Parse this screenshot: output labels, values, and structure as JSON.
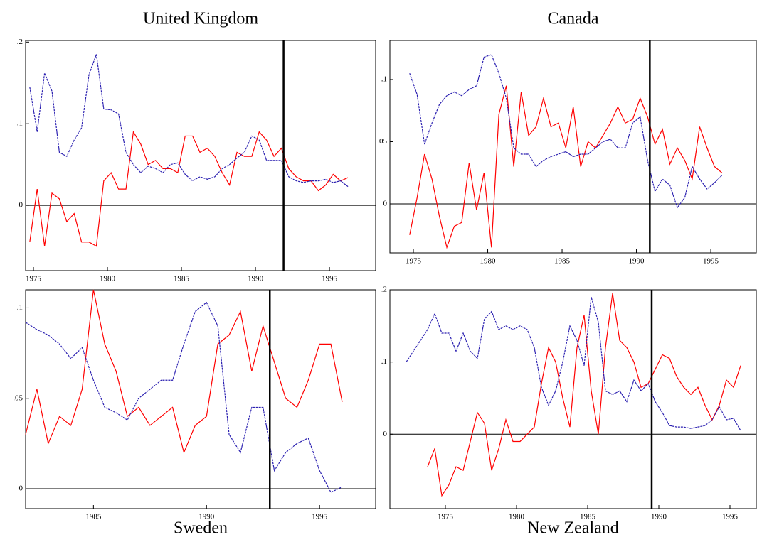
{
  "chart_data": [
    {
      "type": "line",
      "title": "United Kingdom",
      "x": [
        1974.75,
        1975.25,
        1975.75,
        1976.25,
        1976.75,
        1977.25,
        1977.75,
        1978.25,
        1978.75,
        1979.25,
        1979.75,
        1980.25,
        1980.75,
        1981.25,
        1981.75,
        1982.25,
        1982.75,
        1983.25,
        1983.75,
        1984.25,
        1984.75,
        1985.25,
        1985.75,
        1986.25,
        1986.75,
        1987.25,
        1987.75,
        1988.25,
        1988.75,
        1989.25,
        1989.75,
        1990.25,
        1990.75,
        1991.25,
        1991.75,
        1992.25,
        1992.75,
        1993.25,
        1993.75,
        1994.25,
        1994.75,
        1995.25,
        1995.75,
        1996.25
      ],
      "series": [
        {
          "color": "#ff0000",
          "style": "solid",
          "values": [
            -0.045,
            0.02,
            -0.05,
            0.015,
            0.008,
            -0.02,
            -0.01,
            -0.045,
            -0.045,
            -0.05,
            0.03,
            0.04,
            0.02,
            0.02,
            0.09,
            0.075,
            0.05,
            0.055,
            0.045,
            0.045,
            0.04,
            0.085,
            0.085,
            0.065,
            0.07,
            0.06,
            0.04,
            0.025,
            0.065,
            0.06,
            0.06,
            0.09,
            0.08,
            0.06,
            0.07,
            0.045,
            0.035,
            0.03,
            0.03,
            0.018,
            0.025,
            0.038,
            0.03,
            0.034
          ]
        },
        {
          "color": "#2a1fb0",
          "style": "dashed",
          "values": [
            0.145,
            0.09,
            0.162,
            0.14,
            0.065,
            0.06,
            0.08,
            0.095,
            0.16,
            0.185,
            0.118,
            0.117,
            0.112,
            0.065,
            0.05,
            0.04,
            0.048,
            0.045,
            0.04,
            0.05,
            0.052,
            0.038,
            0.03,
            0.035,
            0.032,
            0.035,
            0.045,
            0.05,
            0.058,
            0.065,
            0.085,
            0.08,
            0.055,
            0.055,
            0.055,
            0.035,
            0.03,
            0.028,
            0.03,
            0.03,
            0.032,
            0.028,
            0.03,
            0.023
          ]
        }
      ],
      "xlim": [
        1974.47,
        1998.12
      ],
      "ylim": [
        -0.08,
        0.202
      ],
      "xticks": [
        1975,
        1980,
        1985,
        1990,
        1995
      ],
      "yticks": [
        {
          "value": 0,
          "label": "0"
        },
        {
          "value": 0.1,
          "label": ".1"
        },
        {
          "value": 0.2,
          "label": ".2"
        }
      ],
      "vline": 1991.9,
      "hline": 0
    },
    {
      "type": "line",
      "title": "Canada",
      "x": [
        1974.75,
        1975.25,
        1975.75,
        1976.25,
        1976.75,
        1977.25,
        1977.75,
        1978.25,
        1978.75,
        1979.25,
        1979.75,
        1980.25,
        1980.75,
        1981.25,
        1981.75,
        1982.25,
        1982.75,
        1983.25,
        1983.75,
        1984.25,
        1984.75,
        1985.25,
        1985.75,
        1986.25,
        1986.75,
        1987.25,
        1987.75,
        1988.25,
        1988.75,
        1989.25,
        1989.75,
        1990.25,
        1990.75,
        1991.25,
        1991.75,
        1992.25,
        1992.75,
        1993.25,
        1993.75,
        1994.25,
        1994.75,
        1995.25,
        1995.75
      ],
      "series": [
        {
          "color": "#ff0000",
          "style": "solid",
          "values": [
            -0.025,
            0.005,
            0.04,
            0.02,
            -0.01,
            -0.035,
            -0.018,
            -0.015,
            0.033,
            -0.005,
            0.025,
            -0.035,
            0.072,
            0.095,
            0.03,
            0.09,
            0.055,
            0.062,
            0.085,
            0.062,
            0.065,
            0.045,
            0.078,
            0.03,
            0.05,
            0.045,
            0.055,
            0.065,
            0.078,
            0.065,
            0.068,
            0.085,
            0.07,
            0.048,
            0.06,
            0.032,
            0.045,
            0.035,
            0.02,
            0.062,
            0.045,
            0.03,
            0.025
          ]
        },
        {
          "color": "#2a1fb0",
          "style": "dashed",
          "values": [
            0.105,
            0.088,
            0.048,
            0.065,
            0.08,
            0.087,
            0.09,
            0.087,
            0.092,
            0.095,
            0.118,
            0.12,
            0.105,
            0.085,
            0.045,
            0.04,
            0.04,
            0.03,
            0.035,
            0.038,
            0.04,
            0.042,
            0.038,
            0.04,
            0.04,
            0.045,
            0.05,
            0.052,
            0.045,
            0.045,
            0.065,
            0.07,
            0.035,
            0.01,
            0.02,
            0.015,
            -0.003,
            0.005,
            0.03,
            0.02,
            0.012,
            0.017,
            0.023
          ]
        }
      ],
      "xlim": [
        1973.42,
        1998.06
      ],
      "ylim": [
        -0.0394,
        0.1314
      ],
      "xticks": [
        1975,
        1980,
        1985,
        1990,
        1995
      ],
      "yticks": [
        {
          "value": 0,
          "label": "0"
        },
        {
          "value": 0.05,
          "label": ".05"
        },
        {
          "value": 0.1,
          "label": ".1"
        }
      ],
      "vline": 1990.9,
      "hline": 0
    },
    {
      "type": "line",
      "title": "Sweden",
      "x": [
        1982,
        1982.5,
        1983,
        1983.5,
        1984,
        1984.5,
        1985,
        1985.5,
        1986,
        1986.5,
        1987,
        1987.5,
        1988,
        1988.5,
        1989,
        1989.5,
        1990,
        1990.5,
        1991,
        1991.5,
        1992,
        1992.5,
        1993,
        1993.5,
        1994,
        1994.5,
        1995,
        1995.5,
        1996
      ],
      "series": [
        {
          "color": "#ff0000",
          "style": "solid",
          "values": [
            0.03,
            0.055,
            0.025,
            0.04,
            0.035,
            0.055,
            0.11,
            0.08,
            0.065,
            0.04,
            0.045,
            0.035,
            0.04,
            0.045,
            0.02,
            0.035,
            0.04,
            0.08,
            0.085,
            0.098,
            0.065,
            0.09,
            0.07,
            0.05,
            0.045,
            0.06,
            0.08,
            0.08,
            0.048
          ]
        },
        {
          "color": "#2a1fb0",
          "style": "dashed",
          "values": [
            0.092,
            0.088,
            0.085,
            0.08,
            0.072,
            0.078,
            0.06,
            0.045,
            0.042,
            0.038,
            0.05,
            0.055,
            0.06,
            0.06,
            0.08,
            0.098,
            0.103,
            0.09,
            0.03,
            0.02,
            0.045,
            0.045,
            0.01,
            0.02,
            0.025,
            0.028,
            0.01,
            -0.002,
            0.001
          ]
        }
      ],
      "xlim": [
        1982.0,
        1997.48
      ],
      "ylim": [
        -0.011,
        0.11
      ],
      "xticks": [
        1985,
        1990,
        1995
      ],
      "yticks": [
        {
          "value": 0,
          "label": "0"
        },
        {
          "value": 0.05,
          "label": ".05"
        },
        {
          "value": 0.1,
          "label": ".1"
        }
      ],
      "vline": 1992.8,
      "hline": 0
    },
    {
      "type": "line",
      "title": "New Zealand",
      "x": [
        1972.25,
        1972.75,
        1973.25,
        1973.75,
        1974.25,
        1974.75,
        1975.25,
        1975.75,
        1976.25,
        1976.75,
        1977.25,
        1977.75,
        1978.25,
        1978.75,
        1979.25,
        1979.75,
        1980.25,
        1980.75,
        1981.25,
        1981.75,
        1982.25,
        1982.75,
        1983.25,
        1983.75,
        1984.25,
        1984.75,
        1985.25,
        1985.75,
        1986.25,
        1986.75,
        1987.25,
        1987.75,
        1988.25,
        1988.75,
        1989.25,
        1989.75,
        1990.25,
        1990.75,
        1991.25,
        1991.75,
        1992.25,
        1992.75,
        1993.25,
        1993.75,
        1994.25,
        1994.75,
        1995.25,
        1995.75
      ],
      "series": [
        {
          "color": "#ff0000",
          "style": "solid",
          "values": [
            null,
            null,
            null,
            -0.045,
            -0.02,
            -0.085,
            -0.07,
            -0.045,
            -0.05,
            -0.01,
            0.03,
            0.015,
            -0.05,
            -0.02,
            0.02,
            -0.01,
            -0.01,
            0,
            0.01,
            0.07,
            0.12,
            0.1,
            0.05,
            0.01,
            0.12,
            0.165,
            0.06,
            0,
            0.12,
            0.195,
            0.13,
            0.12,
            0.1,
            0.065,
            0.07,
            0.09,
            0.11,
            0.105,
            0.08,
            0.065,
            0.055,
            0.065,
            0.04,
            0.02,
            0.04,
            0.075,
            0.065,
            0.095
          ]
        },
        {
          "color": "#2a1fb0",
          "style": "dashed",
          "values": [
            0.1,
            0.115,
            0.13,
            0.145,
            0.167,
            0.14,
            0.14,
            0.115,
            0.14,
            0.115,
            0.105,
            0.16,
            0.17,
            0.145,
            0.15,
            0.145,
            0.15,
            0.145,
            0.12,
            0.065,
            0.04,
            0.06,
            0.1,
            0.15,
            0.13,
            0.095,
            0.19,
            0.155,
            0.06,
            0.055,
            0.06,
            0.045,
            0.075,
            0.06,
            0.07,
            0.045,
            0.03,
            0.012,
            0.01,
            0.01,
            0.008,
            0.01,
            0.012,
            0.02,
            0.038,
            0.02,
            0.022,
            0.005
          ]
        }
      ],
      "xlim": [
        1971.1,
        1996.85
      ],
      "ylim": [
        -0.103,
        0.2
      ],
      "xticks": [
        1975,
        1980,
        1985,
        1990,
        1995
      ],
      "yticks": [
        {
          "value": 0,
          "label": "0"
        },
        {
          "value": 0.1,
          "label": ".1"
        },
        {
          "value": 0.2,
          "label": ".2"
        }
      ],
      "vline": 1989.5,
      "hline": 0
    }
  ]
}
